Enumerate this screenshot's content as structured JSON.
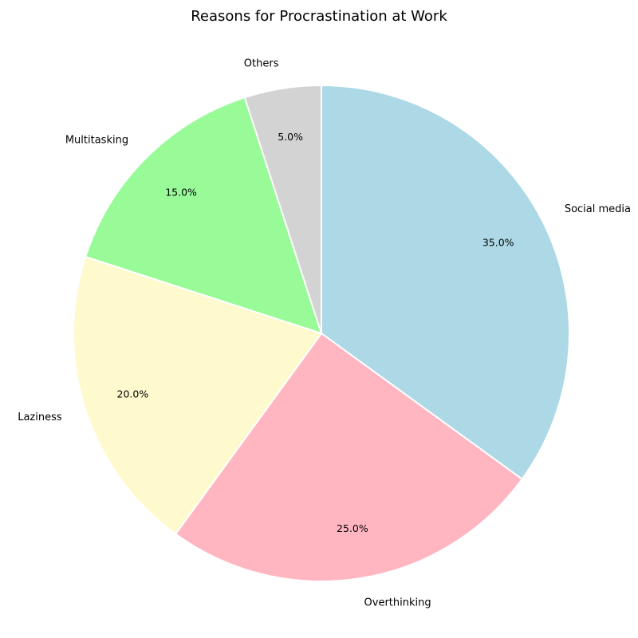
{
  "chart_data": {
    "type": "pie",
    "title": "Reasons for Procrastination at Work",
    "start_angle_deg": 90,
    "direction": "clockwise",
    "slices": [
      {
        "label": "Social media",
        "value": 35.0,
        "pct_label": "35.0%",
        "color": "#add8e6"
      },
      {
        "label": "Overthinking",
        "value": 25.0,
        "pct_label": "25.0%",
        "color": "#ffb6c1"
      },
      {
        "label": "Laziness",
        "value": 20.0,
        "pct_label": "20.0%",
        "color": "#fffacd"
      },
      {
        "label": "Multitasking",
        "value": 15.0,
        "pct_label": "15.0%",
        "color": "#98fb98"
      },
      {
        "label": "Others",
        "value": 5.0,
        "pct_label": "5.0%",
        "color": "#d3d3d3"
      }
    ],
    "slice_edge_color": "#ffffff"
  }
}
